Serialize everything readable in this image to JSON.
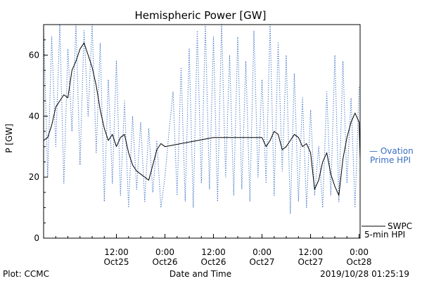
{
  "chart_data": {
    "type": "line",
    "title": "Hemispheric Power [GW]",
    "ylabel": "P [GW]",
    "xlabel": "Date and Time",
    "ylim": [
      0,
      70
    ],
    "yticks": [
      0,
      20,
      40,
      60
    ],
    "xlim": [
      "2019-10-24 18:00",
      "2019-10-28 00:15"
    ],
    "xticks": [
      {
        "x": "2019-10-25 12:00",
        "time": "12:00",
        "date": "Oct25"
      },
      {
        "x": "2019-10-26 00:00",
        "time": "0:00",
        "date": "Oct26"
      },
      {
        "x": "2019-10-26 12:00",
        "time": "12:00",
        "date": "Oct26"
      },
      {
        "x": "2019-10-27 00:00",
        "time": "0:00",
        "date": "Oct27"
      },
      {
        "x": "2019-10-27 12:00",
        "time": "12:00",
        "date": "Oct27"
      },
      {
        "x": "2019-10-28 00:00",
        "time": "0:00",
        "date": "Oct28"
      }
    ],
    "grid": false,
    "series": [
      {
        "name": "SWPC 5-min HPI",
        "style": "solid",
        "color": "#000000",
        "x": [
          "2019-10-24 18:00",
          "2019-10-24 19:00",
          "2019-10-24 20:00",
          "2019-10-24 21:00",
          "2019-10-24 22:00",
          "2019-10-24 23:00",
          "2019-10-25 00:00",
          "2019-10-25 01:00",
          "2019-10-25 02:00",
          "2019-10-25 03:00",
          "2019-10-25 04:00",
          "2019-10-25 05:00",
          "2019-10-25 06:00",
          "2019-10-25 07:00",
          "2019-10-25 08:00",
          "2019-10-25 09:00",
          "2019-10-25 10:00",
          "2019-10-25 11:00",
          "2019-10-25 12:00",
          "2019-10-25 13:00",
          "2019-10-25 14:00",
          "2019-10-25 15:00",
          "2019-10-25 16:00",
          "2019-10-25 17:00",
          "2019-10-25 18:00",
          "2019-10-25 19:00",
          "2019-10-25 20:00",
          "2019-10-25 21:00",
          "2019-10-25 22:00",
          "2019-10-25 23:00",
          "2019-10-26 00:00",
          "2019-10-26 12:00",
          "2019-10-27 00:00",
          "2019-10-27 01:00",
          "2019-10-27 02:00",
          "2019-10-27 03:00",
          "2019-10-27 04:00",
          "2019-10-27 05:00",
          "2019-10-27 06:00",
          "2019-10-27 07:00",
          "2019-10-27 08:00",
          "2019-10-27 09:00",
          "2019-10-27 10:00",
          "2019-10-27 11:00",
          "2019-10-27 12:00",
          "2019-10-27 13:00",
          "2019-10-27 14:00",
          "2019-10-27 15:00",
          "2019-10-27 16:00",
          "2019-10-27 17:00",
          "2019-10-27 18:00",
          "2019-10-27 19:00",
          "2019-10-27 20:00",
          "2019-10-27 21:00",
          "2019-10-27 22:00",
          "2019-10-27 23:00",
          "2019-10-28 00:00",
          "2019-10-28 00:15"
        ],
        "y": [
          32,
          33,
          37,
          43,
          45,
          47,
          46,
          55,
          58,
          62,
          64,
          60,
          56,
          50,
          42,
          36,
          32,
          34,
          30,
          33,
          34,
          28,
          24,
          22,
          21,
          20,
          19,
          24,
          29,
          31,
          30,
          33,
          33,
          30,
          32,
          35,
          34,
          29,
          30,
          32,
          34,
          33,
          30,
          31,
          28,
          16,
          19,
          25,
          28,
          21,
          17,
          14,
          26,
          33,
          38,
          41,
          38,
          26
        ]
      },
      {
        "name": "Ovation Prime HPI",
        "style": "dotted",
        "color": "#3a6fc4",
        "x": [
          "2019-10-24 18:00",
          "2019-10-24 19:00",
          "2019-10-24 20:00",
          "2019-10-24 21:00",
          "2019-10-24 22:00",
          "2019-10-24 23:00",
          "2019-10-25 00:00",
          "2019-10-25 01:00",
          "2019-10-25 02:00",
          "2019-10-25 03:00",
          "2019-10-25 04:00",
          "2019-10-25 05:00",
          "2019-10-25 06:00",
          "2019-10-25 07:00",
          "2019-10-25 08:00",
          "2019-10-25 09:00",
          "2019-10-25 10:00",
          "2019-10-25 11:00",
          "2019-10-25 12:00",
          "2019-10-25 13:00",
          "2019-10-25 14:00",
          "2019-10-25 15:00",
          "2019-10-25 16:00",
          "2019-10-25 17:00",
          "2019-10-25 18:00",
          "2019-10-25 19:00",
          "2019-10-25 20:00",
          "2019-10-25 21:00",
          "2019-10-25 22:00",
          "2019-10-25 23:00",
          "2019-10-26 00:00",
          "2019-10-26 01:00",
          "2019-10-26 02:00",
          "2019-10-26 03:00",
          "2019-10-26 04:00",
          "2019-10-26 05:00",
          "2019-10-26 06:00",
          "2019-10-26 07:00",
          "2019-10-26 08:00",
          "2019-10-26 09:00",
          "2019-10-26 10:00",
          "2019-10-26 11:00",
          "2019-10-26 12:00",
          "2019-10-26 13:00",
          "2019-10-26 14:00",
          "2019-10-26 15:00",
          "2019-10-26 16:00",
          "2019-10-26 17:00",
          "2019-10-26 18:00",
          "2019-10-26 19:00",
          "2019-10-26 20:00",
          "2019-10-26 21:00",
          "2019-10-26 22:00",
          "2019-10-26 23:00",
          "2019-10-27 00:00",
          "2019-10-27 01:00",
          "2019-10-27 02:00",
          "2019-10-27 03:00",
          "2019-10-27 04:00",
          "2019-10-27 05:00",
          "2019-10-27 06:00",
          "2019-10-27 07:00",
          "2019-10-27 08:00",
          "2019-10-27 09:00",
          "2019-10-27 10:00",
          "2019-10-27 11:00",
          "2019-10-27 12:00",
          "2019-10-27 13:00",
          "2019-10-27 14:00",
          "2019-10-27 15:00",
          "2019-10-27 16:00",
          "2019-10-27 17:00",
          "2019-10-27 18:00",
          "2019-10-27 19:00",
          "2019-10-27 20:00",
          "2019-10-27 21:00",
          "2019-10-27 22:00",
          "2019-10-27 23:00",
          "2019-10-28 00:00"
        ],
        "y": [
          70,
          20,
          66,
          30,
          70,
          18,
          62,
          35,
          70,
          24,
          68,
          40,
          70,
          28,
          64,
          12,
          52,
          18,
          58,
          14,
          45,
          10,
          40,
          16,
          38,
          12,
          36,
          15,
          32,
          10,
          20,
          35,
          48,
          14,
          56,
          12,
          62,
          10,
          68,
          18,
          70,
          16,
          66,
          12,
          70,
          20,
          60,
          14,
          66,
          16,
          58,
          12,
          68,
          20,
          52,
          18,
          70,
          14,
          64,
          22,
          60,
          8,
          54,
          12,
          46,
          10,
          42,
          14,
          30,
          10,
          48,
          14,
          60,
          12,
          58,
          18,
          46,
          10,
          50
        ]
      }
    ],
    "legend": {
      "position": "right",
      "entries": [
        {
          "line1": "— Ovation",
          "line2": "Prime HPI",
          "color": "#3a6fc4"
        },
        {
          "line1": "SWPC",
          "line2": "5-min HPI",
          "color": "#000000"
        }
      ]
    }
  },
  "footer": {
    "left": "Plot: CCMC",
    "right": "2019/10/28 01:25:19"
  }
}
